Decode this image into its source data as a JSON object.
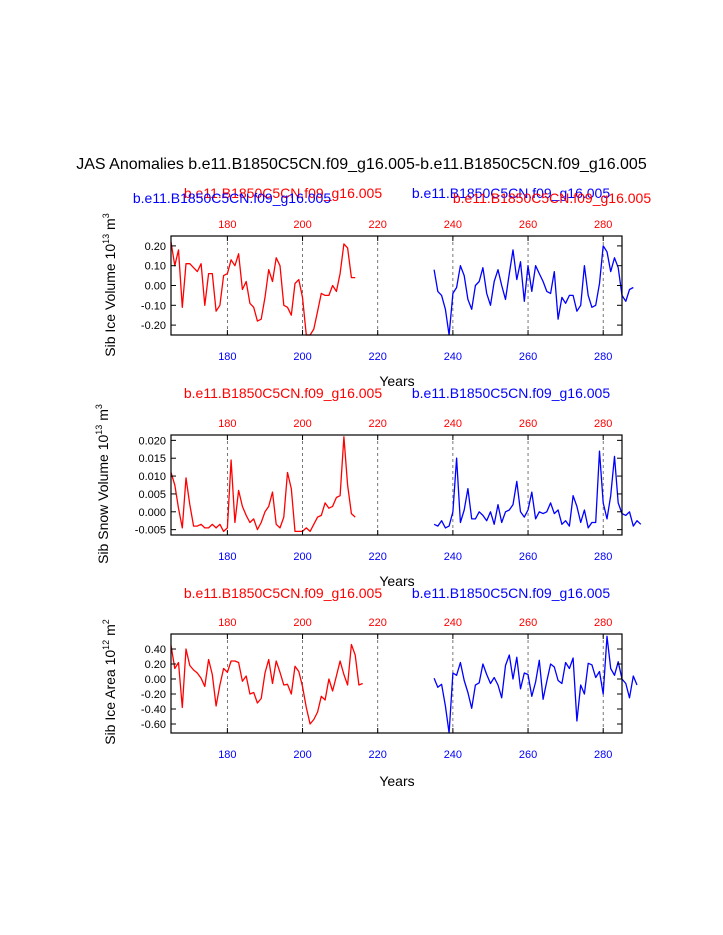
{
  "title": "JAS Anomalies b.e11.B1850C5CN.f09_g16.005-b.e11.B1850C5CN.f09_g16.005",
  "colors": {
    "red_series": "#ff0000",
    "blue_series": "#0000ff",
    "axis": "#000000",
    "grid": "#555555"
  },
  "chart_data": [
    {
      "type": "line",
      "ylabel": "Sib Ice Volume 10",
      "ylabel_exp": "13",
      "ylabel_unit": " m",
      "ylabel_unit_exp": "3",
      "xlabel": "Years",
      "red_label": "b.e11.B1850C5CN.f09_g16.005",
      "blue_label": "b.e11.B1850C5CN.f09_g16.005",
      "red_label_2": "b.e11.B1850C5CN.f09_g16.005",
      "blue_label_2": "b.e11.B1850C5CN.f09_g16.005",
      "xlim": [
        165,
        285
      ],
      "ylim": [
        -0.25,
        0.25
      ],
      "x_ticks": [
        180,
        200,
        220,
        240,
        260,
        280
      ],
      "y_ticks": [
        -0.2,
        -0.1,
        0.0,
        0.1,
        0.2
      ],
      "y_tick_labels": [
        "-0.20",
        "-0.10",
        "0.00",
        "0.10",
        "0.20"
      ],
      "top_tick_labels": [
        "180",
        "200",
        "220",
        "240",
        "260",
        "280"
      ],
      "bottom_tick_labels": [
        "180",
        "200",
        "220",
        "240",
        "260",
        "280"
      ],
      "series": [
        {
          "name": "b.e11.B1850C5CN.f09_g16.005",
          "color": "red",
          "x_start": 165,
          "values": [
            0.22,
            0.1,
            0.18,
            -0.11,
            0.11,
            0.11,
            0.09,
            0.07,
            0.11,
            -0.1,
            0.06,
            0.06,
            -0.13,
            -0.1,
            0.05,
            0.06,
            0.13,
            0.1,
            0.16,
            -0.02,
            0.02,
            -0.09,
            -0.11,
            -0.18,
            -0.17,
            -0.06,
            0.08,
            0.02,
            0.14,
            0.1,
            -0.1,
            -0.11,
            -0.15,
            0.01,
            0.03,
            -0.06,
            -0.25,
            -0.25,
            -0.22,
            -0.13,
            -0.04,
            -0.05,
            -0.05,
            0.0,
            -0.03,
            0.06,
            0.21,
            0.19,
            0.04,
            0.04
          ]
        },
        {
          "name": "b.e11.B1850C5CN.f09_g16.005",
          "color": "blue",
          "x_start": 235,
          "values": [
            0.08,
            -0.03,
            -0.05,
            -0.12,
            -0.25,
            -0.04,
            -0.01,
            0.1,
            0.05,
            -0.07,
            -0.12,
            0.0,
            0.02,
            0.09,
            -0.04,
            -0.1,
            0.02,
            0.08,
            0.0,
            -0.07,
            0.06,
            0.18,
            0.03,
            0.12,
            -0.08,
            0.1,
            -0.03,
            0.1,
            0.06,
            0.02,
            -0.03,
            -0.04,
            0.07,
            -0.17,
            -0.06,
            -0.09,
            -0.05,
            -0.05,
            -0.13,
            -0.1,
            0.1,
            -0.05,
            -0.11,
            -0.1,
            0.01,
            0.2,
            0.17,
            0.07,
            0.14,
            0.09,
            -0.05,
            -0.08,
            -0.02,
            -0.01
          ]
        }
      ]
    },
    {
      "type": "line",
      "ylabel": "Sib Snow Volume 10",
      "ylabel_exp": "13",
      "ylabel_unit": " m",
      "ylabel_unit_exp": "3",
      "xlabel": "Years",
      "red_label": "b.e11.B1850C5CN.f09_g16.005",
      "blue_label": "b.e11.B1850C5CN.f09_g16.005",
      "xlim": [
        165,
        285
      ],
      "ylim": [
        -0.0065,
        0.0215
      ],
      "x_ticks": [
        180,
        200,
        220,
        240,
        260,
        280
      ],
      "y_ticks": [
        -0.005,
        0.0,
        0.005,
        0.01,
        0.015,
        0.02
      ],
      "y_tick_labels": [
        "-0.005",
        "0.000",
        "0.005",
        "0.010",
        "0.015",
        "0.020"
      ],
      "top_tick_labels": [
        "180",
        "200",
        "220",
        "240",
        "260",
        "280"
      ],
      "bottom_tick_labels": [
        "180",
        "200",
        "220",
        "240",
        "260",
        "280"
      ],
      "series": [
        {
          "name": "b.e11.B1850C5CN.f09_g16.005",
          "color": "red",
          "x_start": 165,
          "values": [
            0.011,
            0.0075,
            0.001,
            -0.0045,
            0.0095,
            0.002,
            -0.004,
            -0.004,
            -0.0035,
            -0.0045,
            -0.0045,
            -0.0035,
            -0.0045,
            -0.0035,
            -0.0055,
            -0.0045,
            0.0145,
            -0.003,
            0.006,
            0.0015,
            -0.001,
            -0.003,
            -0.002,
            -0.005,
            -0.003,
            0.0,
            0.0015,
            0.0055,
            -0.0035,
            -0.0045,
            -0.0015,
            0.011,
            0.0065,
            -0.0055,
            -0.0055,
            -0.0055,
            -0.0045,
            -0.0055,
            -0.0035,
            -0.0015,
            -0.001,
            0.0025,
            0.001,
            0.0015,
            0.004,
            0.0045,
            0.021,
            0.0075,
            -0.0005,
            -0.0015
          ]
        },
        {
          "name": "b.e11.B1850C5CN.f09_g16.005",
          "color": "blue",
          "x_start": 235,
          "values": [
            -0.0035,
            -0.004,
            -0.0025,
            -0.0045,
            -0.004,
            0.0,
            0.015,
            -0.003,
            0.0005,
            0.0065,
            -0.002,
            -0.002,
            0.0,
            -0.001,
            -0.0025,
            0.0,
            -0.0035,
            0.002,
            -0.003,
            0.0,
            0.0005,
            0.002,
            0.0085,
            0.0,
            -0.0015,
            0.0005,
            0.0055,
            -0.002,
            0.0,
            -0.0005,
            0.0,
            0.0025,
            -0.0005,
            0.0005,
            -0.0035,
            -0.0025,
            -0.004,
            0.0045,
            0.0015,
            -0.003,
            0.0005,
            -0.0045,
            -0.003,
            -0.003,
            0.017,
            0.0025,
            -0.002,
            0.0045,
            0.0155,
            0.0025,
            -0.0005,
            -0.001,
            0.0,
            -0.004,
            -0.0025,
            -0.0035
          ]
        }
      ]
    },
    {
      "type": "line",
      "ylabel": "Sib Ice Area 10",
      "ylabel_exp": "12",
      "ylabel_unit": " m",
      "ylabel_unit_exp": "2",
      "xlabel": "Years",
      "red_label": "b.e11.B1850C5CN.f09_g16.005",
      "blue_label": "b.e11.B1850C5CN.f09_g16.005",
      "xlim": [
        165,
        285
      ],
      "ylim": [
        -0.72,
        0.6
      ],
      "x_ticks": [
        180,
        200,
        220,
        240,
        260,
        280
      ],
      "y_ticks": [
        -0.6,
        -0.4,
        -0.2,
        0.0,
        0.2,
        0.4
      ],
      "y_tick_labels": [
        "-0.60",
        "-0.40",
        "-0.20",
        "0.00",
        "0.20",
        "0.40"
      ],
      "top_tick_labels": [
        "180",
        "200",
        "220",
        "240",
        "260",
        "280"
      ],
      "bottom_tick_labels": [
        "180",
        "200",
        "220",
        "240",
        "260",
        "280"
      ],
      "series": [
        {
          "name": "b.e11.B1850C5CN.f09_g16.005",
          "color": "red",
          "x_start": 165,
          "values": [
            0.45,
            0.14,
            0.22,
            -0.38,
            0.4,
            0.18,
            0.12,
            0.08,
            0.01,
            -0.1,
            0.26,
            0.06,
            -0.36,
            -0.08,
            0.14,
            0.09,
            0.24,
            0.24,
            0.22,
            -0.03,
            0.04,
            -0.2,
            -0.18,
            -0.32,
            -0.26,
            0.08,
            0.26,
            -0.06,
            0.24,
            0.09,
            -0.08,
            -0.07,
            -0.2,
            0.17,
            0.1,
            -0.1,
            -0.38,
            -0.6,
            -0.54,
            -0.44,
            -0.23,
            -0.28,
            0.0,
            -0.16,
            0.04,
            0.24,
            0.06,
            -0.08,
            0.46,
            0.32,
            -0.08,
            -0.06
          ]
        },
        {
          "name": "b.e11.B1850C5CN.f09_g16.005",
          "color": "blue",
          "x_start": 235,
          "values": [
            0.01,
            -0.11,
            -0.07,
            -0.36,
            -0.72,
            0.08,
            0.05,
            0.22,
            -0.02,
            -0.18,
            -0.39,
            -0.08,
            -0.05,
            0.2,
            0.06,
            -0.06,
            0.02,
            -0.08,
            -0.25,
            0.18,
            0.32,
            0.0,
            0.29,
            -0.13,
            0.08,
            0.06,
            -0.23,
            -0.04,
            0.25,
            -0.27,
            -0.03,
            0.2,
            0.16,
            -0.02,
            -0.06,
            0.22,
            0.14,
            0.28,
            -0.56,
            -0.08,
            -0.2,
            0.21,
            0.19,
            0.02,
            0.1,
            -0.2,
            0.57,
            0.14,
            0.05,
            0.23,
            0.0,
            -0.06,
            -0.25,
            0.04,
            -0.08
          ]
        }
      ]
    }
  ]
}
